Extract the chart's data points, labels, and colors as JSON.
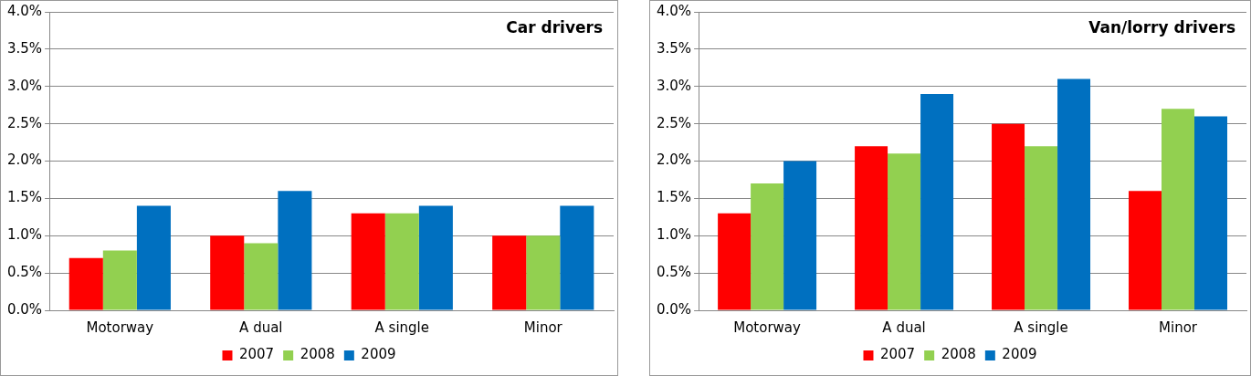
{
  "chart_data": [
    {
      "type": "bar",
      "title": "Car drivers",
      "categories": [
        "Motorway",
        "A dual",
        "A single",
        "Minor"
      ],
      "series": [
        {
          "name": "2007",
          "color": "#ff0000",
          "values": [
            0.7,
            1.0,
            1.3,
            1.0
          ]
        },
        {
          "name": "2008",
          "color": "#92d050",
          "values": [
            0.8,
            0.9,
            1.3,
            1.0
          ]
        },
        {
          "name": "2009",
          "color": "#0070c0",
          "values": [
            1.4,
            1.6,
            1.4,
            1.4
          ]
        }
      ],
      "ylim": [
        0,
        4
      ],
      "yticks": [
        {
          "value": 0,
          "label": "0.0%"
        },
        {
          "value": 0.5,
          "label": "0.5%"
        },
        {
          "value": 1,
          "label": "1.0%"
        },
        {
          "value": 1.5,
          "label": "1.5%"
        },
        {
          "value": 2,
          "label": "2.0%"
        },
        {
          "value": 2.5,
          "label": "2.5%"
        },
        {
          "value": 3,
          "label": "3.0%"
        },
        {
          "value": 3.5,
          "label": "3.5%"
        },
        {
          "value": 4,
          "label": "4.0%"
        }
      ],
      "grid": "y",
      "legend": "bottom"
    },
    {
      "type": "bar",
      "title": "Van/lorry drivers",
      "categories": [
        "Motorway",
        "A dual",
        "A single",
        "Minor"
      ],
      "series": [
        {
          "name": "2007",
          "color": "#ff0000",
          "values": [
            1.3,
            2.2,
            2.5,
            1.6
          ]
        },
        {
          "name": "2008",
          "color": "#92d050",
          "values": [
            1.7,
            2.1,
            2.2,
            2.7
          ]
        },
        {
          "name": "2009",
          "color": "#0070c0",
          "values": [
            2.0,
            2.9,
            3.1,
            2.6
          ]
        }
      ],
      "ylim": [
        0,
        4
      ],
      "yticks": [
        {
          "value": 0,
          "label": "0.0%"
        },
        {
          "value": 0.5,
          "label": "0.5%"
        },
        {
          "value": 1,
          "label": "1.0%"
        },
        {
          "value": 1.5,
          "label": "1.5%"
        },
        {
          "value": 2,
          "label": "2.0%"
        },
        {
          "value": 2.5,
          "label": "2.5%"
        },
        {
          "value": 3,
          "label": "3.0%"
        },
        {
          "value": 3.5,
          "label": "3.5%"
        },
        {
          "value": 4,
          "label": "4.0%"
        }
      ],
      "grid": "y",
      "legend": "bottom"
    }
  ]
}
